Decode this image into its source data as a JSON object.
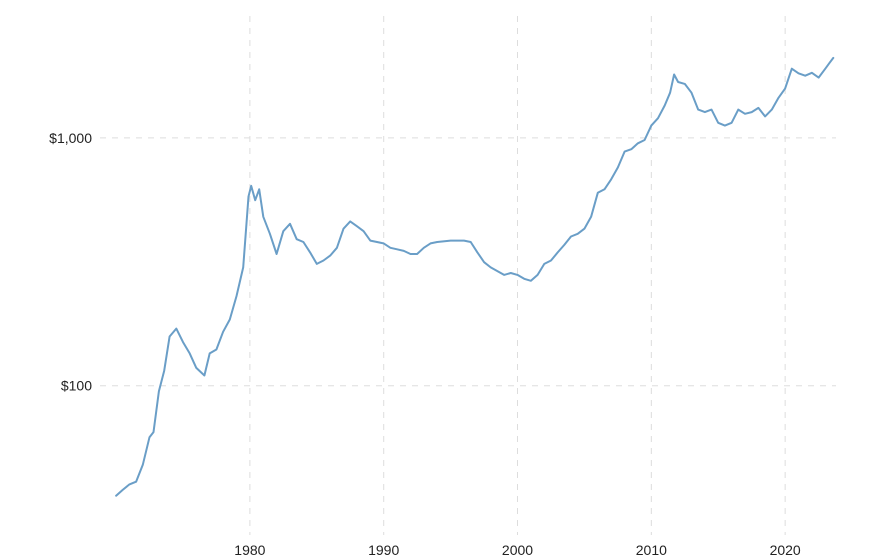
{
  "chart_data": {
    "type": "line",
    "title": "",
    "xlabel": "",
    "ylabel": "",
    "y_scale": "log",
    "grid": true,
    "legend": "none",
    "x_ticks": [
      1980,
      1990,
      2000,
      2010,
      2020
    ],
    "x_tick_labels": [
      "1980",
      "1990",
      "2000",
      "2010",
      "2020"
    ],
    "y_ticks": [
      100,
      1000
    ],
    "y_tick_labels": [
      "$100",
      "$1,000"
    ],
    "xlim": [
      1968.8,
      2023.8
    ],
    "ylim": [
      25,
      3100
    ],
    "colors": {
      "line": "#6a9ec7",
      "grid": "#dddddd",
      "tick_text": "#222222"
    },
    "series": [
      {
        "x": [
          1970.0,
          1970.5,
          1971.0,
          1971.5,
          1972.0,
          1972.5,
          1972.8,
          1973.2,
          1973.6,
          1974.0,
          1974.5,
          1975.0,
          1975.5,
          1976.0,
          1976.6,
          1977.0,
          1977.5,
          1978.0,
          1978.5,
          1979.0,
          1979.5,
          1979.9,
          1980.1,
          1980.4,
          1980.7,
          1981.0,
          1981.5,
          1982.0,
          1982.5,
          1983.0,
          1983.5,
          1984.0,
          1984.5,
          1985.0,
          1985.5,
          1986.0,
          1986.5,
          1987.0,
          1987.5,
          1988.0,
          1988.5,
          1989.0,
          1989.5,
          1990.0,
          1990.5,
          1991.0,
          1991.5,
          1992.0,
          1992.5,
          1993.0,
          1993.5,
          1994.0,
          1995.0,
          1996.0,
          1996.5,
          1997.0,
          1997.5,
          1998.0,
          1998.5,
          1999.0,
          1999.5,
          2000.0,
          2000.5,
          2001.0,
          2001.5,
          2002.0,
          2002.5,
          2003.0,
          2003.5,
          2004.0,
          2004.5,
          2005.0,
          2005.5,
          2006.0,
          2006.5,
          2007.0,
          2007.5,
          2008.0,
          2008.5,
          2009.0,
          2009.5,
          2010.0,
          2010.5,
          2011.0,
          2011.4,
          2011.7,
          2012.0,
          2012.5,
          2013.0,
          2013.5,
          2014.0,
          2014.5,
          2015.0,
          2015.5,
          2016.0,
          2016.5,
          2017.0,
          2017.5,
          2018.0,
          2018.5,
          2019.0,
          2019.5,
          2020.0,
          2020.5,
          2021.0,
          2021.5,
          2022.0,
          2022.5,
          2023.0,
          2023.3,
          2023.6
        ],
        "y": [
          36,
          38,
          40,
          41,
          48,
          62,
          65,
          95,
          115,
          158,
          170,
          150,
          135,
          118,
          110,
          135,
          140,
          165,
          185,
          230,
          300,
          580,
          640,
          560,
          620,
          480,
          410,
          340,
          420,
          450,
          390,
          380,
          345,
          310,
          320,
          335,
          360,
          430,
          460,
          440,
          420,
          385,
          380,
          375,
          360,
          355,
          350,
          340,
          340,
          360,
          375,
          380,
          385,
          385,
          380,
          345,
          315,
          300,
          290,
          280,
          285,
          280,
          270,
          265,
          280,
          310,
          320,
          345,
          370,
          400,
          410,
          430,
          480,
          600,
          620,
          680,
          760,
          880,
          900,
          950,
          980,
          1120,
          1200,
          1350,
          1520,
          1800,
          1680,
          1650,
          1520,
          1300,
          1270,
          1300,
          1150,
          1120,
          1150,
          1300,
          1250,
          1270,
          1320,
          1220,
          1300,
          1450,
          1580,
          1900,
          1820,
          1780,
          1830,
          1750,
          1900,
          2000,
          2100
        ]
      }
    ]
  }
}
